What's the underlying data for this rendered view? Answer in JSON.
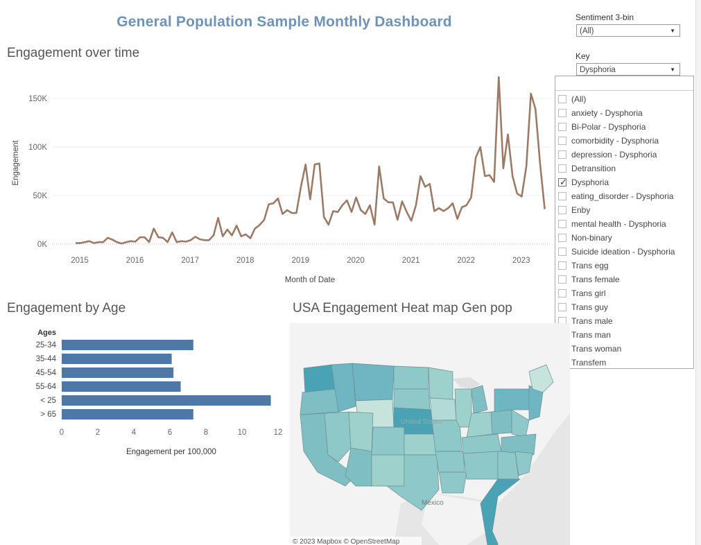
{
  "dashboard": {
    "title": "General Population Sample Monthly Dashboard"
  },
  "filters": {
    "sentiment": {
      "label": "Sentiment 3-bin",
      "value": "(All)"
    },
    "key": {
      "label": "Key",
      "value": "Dysphoria",
      "options": [
        {
          "label": "(All)",
          "checked": false
        },
        {
          "label": "anxiety - Dysphoria",
          "checked": false
        },
        {
          "label": "Bi-Polar - Dysphoria",
          "checked": false
        },
        {
          "label": "comorbidity - Dysphoria",
          "checked": false
        },
        {
          "label": "depression - Dysphoria",
          "checked": false
        },
        {
          "label": "Detransition",
          "checked": false
        },
        {
          "label": "Dysphoria",
          "checked": true
        },
        {
          "label": "eating_disorder - Dysphoria",
          "checked": false
        },
        {
          "label": "Enby",
          "checked": false
        },
        {
          "label": "mental health - Dysphoria",
          "checked": false
        },
        {
          "label": "Non-binary",
          "checked": false
        },
        {
          "label": "Suicide ideation - Dysphoria",
          "checked": false
        },
        {
          "label": "Trans egg",
          "checked": false
        },
        {
          "label": "Trans female",
          "checked": false
        },
        {
          "label": "Trans girl",
          "checked": false
        },
        {
          "label": "Trans guy",
          "checked": false
        },
        {
          "label": "Trans male",
          "checked": false
        },
        {
          "label": "Trans man",
          "checked": false
        },
        {
          "label": "Trans woman",
          "checked": false
        },
        {
          "label": "Transfem",
          "checked": false
        }
      ]
    }
  },
  "sections": {
    "line_title": "Engagement over time",
    "age_title": "Engagement by Age",
    "map_title": "USA Engagement Heat map Gen pop"
  },
  "chart_data": [
    {
      "type": "line",
      "xlabel": "Month of Date",
      "ylabel": "Engagement",
      "x_ticks": [
        "2015",
        "2016",
        "2017",
        "2018",
        "2019",
        "2020",
        "2021",
        "2022",
        "2023"
      ],
      "y_ticks": [
        "0K",
        "50K",
        "100K",
        "150K"
      ],
      "ylim": [
        0,
        175000
      ],
      "color": "#9b7b67",
      "grid": true,
      "series": [
        {
          "values": [
            1000,
            1000,
            2000,
            3000,
            1000,
            2000,
            2000,
            6500,
            4500,
            2000,
            500,
            2000,
            3000,
            2500,
            7000,
            7000,
            2000,
            16000,
            7000,
            6500,
            2000,
            12000,
            2000,
            3000,
            2500,
            4000,
            7500,
            5000,
            4000,
            4000,
            9000,
            27000,
            8000,
            15000,
            9000,
            19000,
            8000,
            10000,
            6000,
            16000,
            19500,
            25000,
            41000,
            42000,
            47000,
            31000,
            35000,
            32000,
            32000,
            59000,
            82000,
            46000,
            82000,
            83000,
            28000,
            20000,
            34000,
            33000,
            40000,
            45000,
            33000,
            48000,
            35000,
            31000,
            40000,
            20000,
            80000,
            47000,
            43000,
            43000,
            25000,
            44000,
            33000,
            24000,
            40000,
            70000,
            59000,
            62000,
            34000,
            37000,
            34000,
            37000,
            42000,
            26000,
            38000,
            40000,
            48000,
            89000,
            100000,
            70000,
            71000,
            64000,
            172000,
            78000,
            113000,
            70000,
            52000,
            49000,
            80000,
            155000,
            139000,
            82000,
            36000
          ]
        }
      ]
    },
    {
      "type": "bar",
      "xlabel": "Engagement per 100,000",
      "ylabel": "Ages",
      "categories": [
        "25-34",
        "35-44",
        "45-54",
        "55-64",
        "< 25",
        "> 65"
      ],
      "values": [
        7.3,
        6.1,
        6.2,
        6.6,
        11.6,
        7.3
      ],
      "x_ticks": [
        "0",
        "2",
        "4",
        "6",
        "8",
        "10",
        "12"
      ],
      "xlim": [
        0,
        12
      ],
      "color": "#4e79a7"
    }
  ],
  "map": {
    "attribution": "© 2023 Mapbox  © OpenStreetMap",
    "labels": {
      "country": "United States",
      "mexico": "Mexico"
    },
    "colors": {
      "water": "#e4e4e4",
      "land": "#f2f2f2",
      "low": "#c6e3dc",
      "mid": "#8ec8c8",
      "high": "#4aa3b5"
    }
  }
}
